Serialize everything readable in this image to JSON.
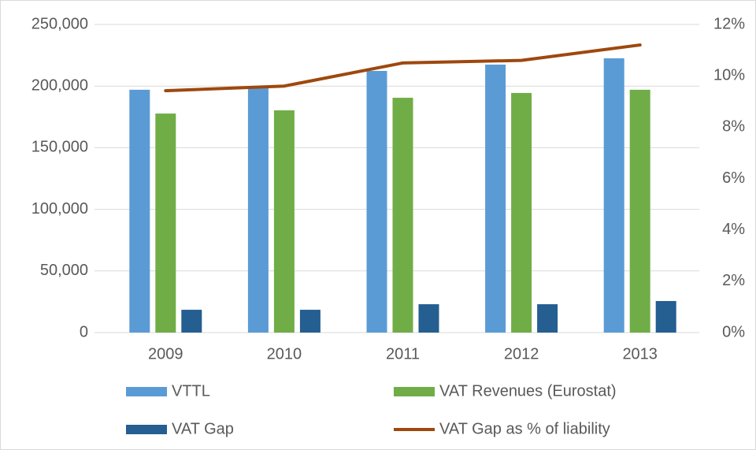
{
  "chart_data": {
    "type": "bar",
    "categories": [
      "2009",
      "2010",
      "2011",
      "2012",
      "2013"
    ],
    "series": [
      {
        "name": "VTTL",
        "color": "#5b9bd5",
        "values": [
          197000,
          198200,
          212300,
          217400,
          222500
        ]
      },
      {
        "name": "VAT Revenues (Eurostat)",
        "color": "#70ad47",
        "values": [
          177700,
          180300,
          190500,
          194400,
          197000
        ]
      },
      {
        "name": "VAT Gap",
        "color": "#255e91",
        "values": [
          18500,
          18500,
          23000,
          23000,
          25600
        ]
      },
      {
        "name": "VAT Gap as % of liability",
        "color": "#9e480e",
        "type": "line",
        "axis": "y2",
        "values": [
          9.42,
          9.6,
          10.5,
          10.6,
          11.2
        ]
      }
    ],
    "ylim": [
      0,
      250000
    ],
    "yticks": [
      0,
      {
        "value": 50000,
        "label": "50,000"
      },
      {
        "value": 100000,
        "label": "100,000"
      },
      {
        "value": 150000,
        "label": "150,000"
      },
      {
        "value": 200000,
        "label": "200,000"
      },
      {
        "value": 250000,
        "label": "250,000"
      }
    ],
    "y2lim": [
      0,
      12
    ],
    "y2ticks": [
      {
        "value": 0,
        "label": "0%"
      },
      {
        "value": 2,
        "label": "2%"
      },
      {
        "value": 4,
        "label": "4%"
      },
      {
        "value": 6,
        "label": "6%"
      },
      {
        "value": 8,
        "label": "8%"
      },
      {
        "value": 10,
        "label": "10%"
      },
      {
        "value": 12,
        "label": "12%"
      }
    ],
    "grid": true,
    "legend": "bottom"
  }
}
